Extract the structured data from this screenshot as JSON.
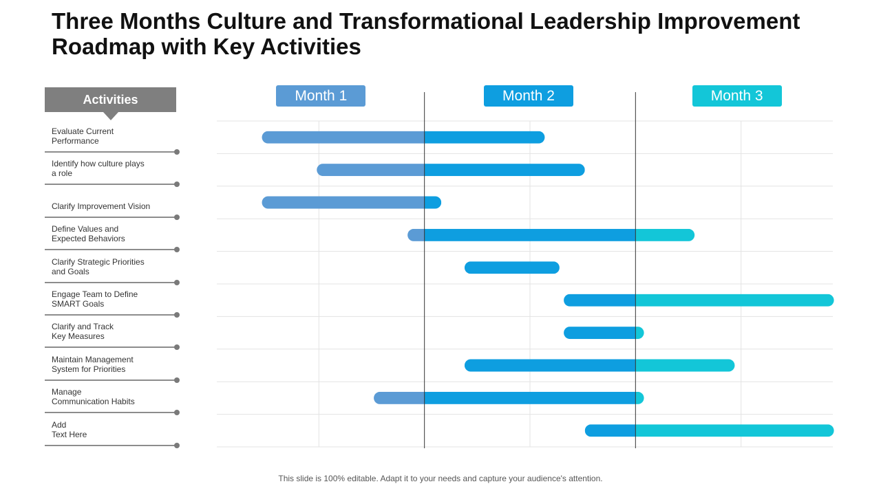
{
  "title": "Three Months Culture and Transformational Leadership Improvement Roadmap with Key Activities",
  "activities_header": "Activities",
  "footer": "This slide is 100% editable. Adapt it to your needs and capture your audience's attention.",
  "colors": {
    "month1": "#5b9bd5",
    "month2": "#0e9ee0",
    "month3": "#13c6d8",
    "grid": "#e3e3e3",
    "divider": "#333333"
  },
  "chart_data": {
    "type": "gantt",
    "unit": "months",
    "xlim": [
      0,
      3
    ],
    "months": [
      "Month 1",
      "Month 2",
      "Month 3"
    ],
    "tasks": [
      {
        "name": "Evaluate Current\nPerformance",
        "start": 0.23,
        "end": 1.57
      },
      {
        "name": "Identify how culture plays\na role",
        "start": 0.49,
        "end": 1.76
      },
      {
        "name": "Clarify Improvement Vision",
        "start": 0.23,
        "end": 1.08
      },
      {
        "name": "Define Values and\nExpected Behaviors",
        "start": 0.92,
        "end": 2.28
      },
      {
        "name": "Clarify Strategic Priorities\nand Goals",
        "start": 1.19,
        "end": 1.64
      },
      {
        "name": "Engage Team to Define\nSMART Goals",
        "start": 1.66,
        "end": 2.94
      },
      {
        "name": "Clarify and Track\nKey Measures",
        "start": 1.66,
        "end": 2.04
      },
      {
        "name": "Maintain Management\nSystem for Priorities",
        "start": 1.19,
        "end": 2.47
      },
      {
        "name": "Manage\nCommunication Habits",
        "start": 0.76,
        "end": 2.04
      },
      {
        "name": "Add\nText Here",
        "start": 1.76,
        "end": 2.94
      }
    ]
  }
}
